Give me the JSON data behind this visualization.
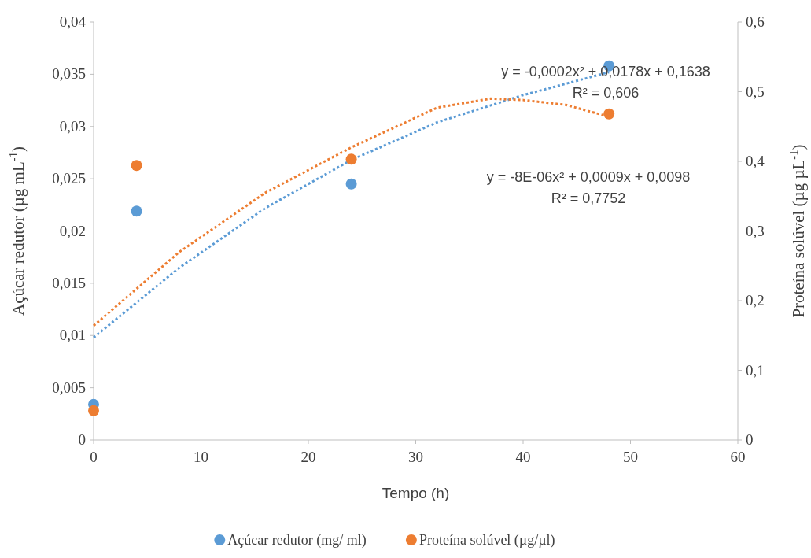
{
  "chart_data": {
    "type": "scatter",
    "xlabel": "Tempo (h)",
    "ylabel": "Açúcar redutor  (µg mL$^{-1}$)",
    "y2label": "Proteína solúvel (µg µL$^{-1}$)",
    "xlim": [
      0,
      60
    ],
    "xticks": [
      0,
      10,
      20,
      30,
      40,
      50,
      60
    ],
    "ylim": [
      0,
      0.04
    ],
    "yticks": [
      {
        "value": 0,
        "label": "0"
      },
      {
        "value": 0.005,
        "label": "0,005"
      },
      {
        "value": 0.01,
        "label": "0,01"
      },
      {
        "value": 0.015,
        "label": "0,015"
      },
      {
        "value": 0.02,
        "label": "0,02"
      },
      {
        "value": 0.025,
        "label": "0,025"
      },
      {
        "value": 0.03,
        "label": "0,03"
      },
      {
        "value": 0.035,
        "label": "0,035"
      },
      {
        "value": 0.04,
        "label": "0,04"
      }
    ],
    "y2lim": [
      0,
      0.6
    ],
    "y2ticks": [
      {
        "value": 0,
        "label": "0"
      },
      {
        "value": 0.1,
        "label": "0,1"
      },
      {
        "value": 0.2,
        "label": "0,2"
      },
      {
        "value": 0.3,
        "label": "0,3"
      },
      {
        "value": 0.4,
        "label": "0,4"
      },
      {
        "value": 0.5,
        "label": "0,5"
      },
      {
        "value": 0.6,
        "label": "0,6"
      }
    ],
    "grid": false,
    "legend": "bottom",
    "series": [
      {
        "type": "line",
        "color": "#5b9bd5",
        "line_style": "dotted",
        "marker": "none",
        "x": [
          0,
          8,
          16,
          24,
          32,
          40,
          48
        ],
        "values": [
          0.0098,
          0.0165,
          0.0222,
          0.0268,
          0.0304,
          0.033,
          0.0352
        ]
      },
      {
        "type": "line",
        "axis": "y2",
        "color": "#ed7d31",
        "line_style": "dotted",
        "marker": "none",
        "x": [
          0,
          8,
          16,
          24,
          32,
          37,
          40,
          44,
          48
        ],
        "values": [
          0.164,
          0.27,
          0.355,
          0.42,
          0.477,
          0.49,
          0.488,
          0.481,
          0.464
        ]
      },
      {
        "name": "Açúcar redutor (mg/ ml)",
        "color": "#5b9bd5",
        "marker": "circle",
        "x": [
          0,
          4,
          24,
          48
        ],
        "values": [
          0.0034,
          0.0219,
          0.0245,
          0.0358
        ]
      },
      {
        "name": "Proteína solúvel (µg/µl)",
        "axis": "y2",
        "color": "#ed7d31",
        "marker": "circle",
        "x": [
          0,
          4,
          24,
          48
        ],
        "values": [
          0.042,
          0.394,
          0.403,
          0.468
        ]
      }
    ],
    "annotations": [
      "y = -0,0002x² + 0,0178x + 0,1638\nR² = 0,606",
      "y = -8E-06x² + 0,0009x + 0,0098\nR² = 0,7752"
    ]
  }
}
